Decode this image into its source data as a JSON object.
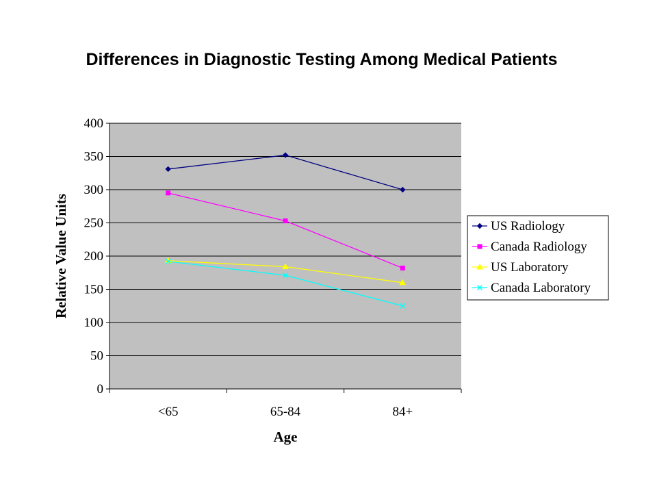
{
  "chart_data": {
    "type": "line",
    "title": "Differences in Diagnostic Testing Among Medical Patients",
    "xlabel": "Age",
    "ylabel": "Relative Value Units",
    "categories": [
      "<65",
      "65-84",
      "84+"
    ],
    "ylim": [
      0,
      400
    ],
    "yticks": [
      0,
      50,
      100,
      150,
      200,
      250,
      300,
      350,
      400
    ],
    "grid": true,
    "plot_background": "#c0c0c0",
    "legend_position": "right",
    "series": [
      {
        "name": "US Radiology",
        "values": [
          331,
          352,
          300
        ],
        "color": "#000080",
        "marker": "diamond"
      },
      {
        "name": "Canada Radiology",
        "values": [
          295,
          253,
          182
        ],
        "color": "#ff00ff",
        "marker": "square"
      },
      {
        "name": "US Laboratory",
        "values": [
          193,
          184,
          160
        ],
        "color": "#ffff00",
        "marker": "triangle"
      },
      {
        "name": "Canada Laboratory",
        "values": [
          192,
          171,
          125
        ],
        "color": "#00ffff",
        "marker": "x"
      }
    ]
  }
}
